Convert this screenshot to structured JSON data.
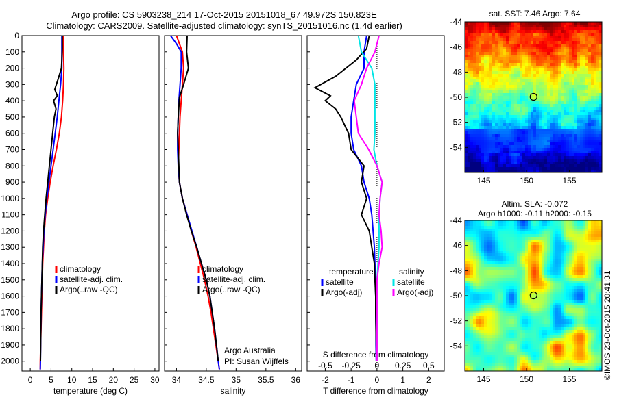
{
  "title": {
    "line1": "Argo profile: CS 5903238_214 17-Oct-2015 20151018_67 49.972S 150.823E",
    "line2": "Climatology: CARS2009. Satellite-adjusted climatology: synTS_20151016.nc (1.4d earlier)"
  },
  "sst_title": "sat. SST: 7.46 Argo: 7.64",
  "sla_title": {
    "line1": "Altim. SLA: -0.072",
    "line2": "Argo h1000: -0.11 h2000: -0.15"
  },
  "credit": "Argo Australia",
  "pi": "PI: Susan Wijffels",
  "stamp": "©IMOS 23-Oct-2015 20:41:31",
  "colors": {
    "climatology": "#ff0000",
    "satellite": "#0000ff",
    "argo": "#000000",
    "sat_salinity": "#00e5e5",
    "argo_salinity": "#ff00ff"
  },
  "chart_data": [
    {
      "type": "line",
      "id": "temperature",
      "xlabel": "temperature (deg C)",
      "ylabel": "",
      "xlim": [
        -2,
        31
      ],
      "ylim": [
        2060,
        0
      ],
      "xticks": [
        "0",
        "5",
        "10",
        "15",
        "20",
        "25",
        "30"
      ],
      "yticks": [
        "0",
        "100",
        "200",
        "300",
        "400",
        "500",
        "600",
        "700",
        "800",
        "900",
        "1000",
        "1100",
        "1200",
        "1300",
        "1400",
        "1500",
        "1600",
        "1700",
        "1800",
        "1900",
        "2000"
      ],
      "legend": [
        "climatology",
        "satellite-adj. clim.",
        "Argo(..raw -QC)"
      ],
      "series": [
        {
          "name": "climatology",
          "color": "#ff0000",
          "points": [
            [
              8.0,
              0
            ],
            [
              8.0,
              100
            ],
            [
              8.1,
              200
            ],
            [
              8.0,
              300
            ],
            [
              7.8,
              400
            ],
            [
              7.5,
              500
            ],
            [
              7.0,
              600
            ],
            [
              6.3,
              700
            ],
            [
              5.5,
              800
            ],
            [
              4.8,
              900
            ],
            [
              4.2,
              1000
            ],
            [
              3.7,
              1100
            ],
            [
              3.4,
              1200
            ],
            [
              3.2,
              1300
            ],
            [
              3.0,
              1400
            ],
            [
              2.9,
              1500
            ],
            [
              2.8,
              1600
            ],
            [
              2.7,
              1700
            ],
            [
              2.6,
              1800
            ],
            [
              2.5,
              1900
            ],
            [
              2.4,
              2000
            ],
            [
              2.4,
              2050
            ]
          ]
        },
        {
          "name": "satellite-adj. clim.",
          "color": "#0000ff",
          "points": [
            [
              7.6,
              0
            ],
            [
              7.6,
              100
            ],
            [
              7.6,
              200
            ],
            [
              7.3,
              300
            ],
            [
              6.9,
              400
            ],
            [
              6.5,
              500
            ],
            [
              6.0,
              600
            ],
            [
              5.5,
              700
            ],
            [
              5.0,
              800
            ],
            [
              4.5,
              900
            ],
            [
              4.0,
              1000
            ],
            [
              3.6,
              1100
            ],
            [
              3.3,
              1200
            ],
            [
              3.1,
              1300
            ],
            [
              2.9,
              1400
            ],
            [
              2.8,
              1500
            ],
            [
              2.7,
              1600
            ],
            [
              2.6,
              1700
            ],
            [
              2.55,
              1800
            ],
            [
              2.5,
              1900
            ],
            [
              2.45,
              2000
            ],
            [
              2.4,
              2050
            ]
          ]
        },
        {
          "name": "Argo(..raw -QC)",
          "color": "#000000",
          "points": [
            [
              7.7,
              0
            ],
            [
              7.7,
              80
            ],
            [
              7.6,
              150
            ],
            [
              7.5,
              200
            ],
            [
              6.8,
              260
            ],
            [
              5.9,
              330
            ],
            [
              6.5,
              370
            ],
            [
              5.6,
              400
            ],
            [
              6.2,
              450
            ],
            [
              5.8,
              500
            ],
            [
              5.4,
              600
            ],
            [
              5.0,
              700
            ],
            [
              4.6,
              800
            ],
            [
              4.2,
              900
            ],
            [
              3.8,
              1000
            ],
            [
              3.5,
              1100
            ],
            [
              3.2,
              1200
            ],
            [
              3.0,
              1300
            ],
            [
              2.9,
              1400
            ],
            [
              2.8,
              1500
            ],
            [
              2.7,
              1600
            ],
            [
              2.6,
              1700
            ],
            [
              2.55,
              1800
            ],
            [
              2.5,
              1900
            ],
            [
              2.45,
              2000
            ]
          ]
        }
      ]
    },
    {
      "type": "line",
      "id": "salinity",
      "xlabel": "salinity",
      "xlim": [
        33.8,
        36.1
      ],
      "ylim": [
        2060,
        0
      ],
      "xticks": [
        "34",
        "34.5",
        "35",
        "35.5",
        "36"
      ],
      "legend": [
        "climatology",
        "satellite-adj. clim.",
        "Argo(..raw -QC)"
      ],
      "series": [
        {
          "name": "climatology",
          "color": "#ff0000",
          "points": [
            [
              34.0,
              0
            ],
            [
              34.05,
              50
            ],
            [
              34.1,
              100
            ],
            [
              34.12,
              200
            ],
            [
              34.1,
              300
            ],
            [
              34.08,
              400
            ],
            [
              34.06,
              500
            ],
            [
              34.05,
              600
            ],
            [
              34.04,
              700
            ],
            [
              34.03,
              800
            ],
            [
              34.05,
              900
            ],
            [
              34.1,
              1000
            ],
            [
              34.18,
              1100
            ],
            [
              34.25,
              1200
            ],
            [
              34.33,
              1300
            ],
            [
              34.4,
              1400
            ],
            [
              34.47,
              1500
            ],
            [
              34.53,
              1600
            ],
            [
              34.58,
              1700
            ],
            [
              34.62,
              1800
            ],
            [
              34.66,
              1900
            ],
            [
              34.7,
              2000
            ],
            [
              34.72,
              2050
            ]
          ]
        },
        {
          "name": "satellite-adj. clim.",
          "color": "#0000ff",
          "points": [
            [
              33.9,
              0
            ],
            [
              34.0,
              50
            ],
            [
              34.08,
              100
            ],
            [
              34.08,
              200
            ],
            [
              34.06,
              300
            ],
            [
              34.04,
              400
            ],
            [
              34.03,
              500
            ],
            [
              34.02,
              600
            ],
            [
              34.02,
              700
            ],
            [
              34.03,
              800
            ],
            [
              34.05,
              900
            ],
            [
              34.1,
              1000
            ],
            [
              34.18,
              1100
            ],
            [
              34.26,
              1200
            ],
            [
              34.34,
              1300
            ],
            [
              34.42,
              1400
            ],
            [
              34.5,
              1500
            ],
            [
              34.56,
              1600
            ],
            [
              34.6,
              1700
            ],
            [
              34.64,
              1800
            ],
            [
              34.67,
              1900
            ],
            [
              34.7,
              2000
            ],
            [
              34.72,
              2050
            ]
          ]
        },
        {
          "name": "Argo(..raw -QC)",
          "color": "#000000",
          "points": [
            [
              34.18,
              0
            ],
            [
              34.17,
              100
            ],
            [
              34.2,
              200
            ],
            [
              34.12,
              300
            ],
            [
              34.05,
              380
            ],
            [
              34.03,
              500
            ],
            [
              34.02,
              600
            ],
            [
              34.03,
              700
            ],
            [
              34.04,
              800
            ],
            [
              34.05,
              900
            ],
            [
              34.1,
              1000
            ],
            [
              34.17,
              1100
            ],
            [
              34.25,
              1200
            ],
            [
              34.34,
              1300
            ],
            [
              34.42,
              1400
            ],
            [
              34.5,
              1500
            ],
            [
              34.56,
              1600
            ],
            [
              34.6,
              1700
            ],
            [
              34.64,
              1800
            ],
            [
              34.67,
              1900
            ],
            [
              34.7,
              2000
            ]
          ]
        }
      ]
    },
    {
      "type": "line",
      "id": "difference",
      "xlabel": "T difference from climatology",
      "xlabel_top": "S difference from climatology",
      "xlim": [
        -2.7,
        2.6
      ],
      "ylim": [
        2060,
        0
      ],
      "xticks": [
        "-2",
        "-1",
        "0",
        "1",
        "2"
      ],
      "xticks_s": [
        "-0.5",
        "-0.25",
        "0",
        "0.25",
        "0.5"
      ],
      "legend": {
        "temperature_head": "temperature",
        "salinity_head": "salinity",
        "satellite": "satellite",
        "argo": "Argo(-adj)"
      },
      "series": [
        {
          "name": "satellite",
          "quantity": "temperature",
          "color": "#0000ff",
          "points": [
            [
              -0.4,
              0
            ],
            [
              -0.5,
              100
            ],
            [
              -0.5,
              200
            ],
            [
              -0.8,
              300
            ],
            [
              -0.9,
              400
            ],
            [
              -1.0,
              500
            ],
            [
              -1.0,
              600
            ],
            [
              -0.9,
              700
            ],
            [
              -0.6,
              800
            ],
            [
              -0.5,
              900
            ],
            [
              -0.3,
              1000
            ],
            [
              -0.2,
              1100
            ],
            [
              -0.15,
              1200
            ],
            [
              -0.1,
              1300
            ],
            [
              -0.08,
              1400
            ],
            [
              -0.06,
              1500
            ],
            [
              -0.05,
              1600
            ],
            [
              -0.05,
              1700
            ],
            [
              -0.04,
              1800
            ],
            [
              -0.04,
              1900
            ],
            [
              -0.03,
              2000
            ]
          ]
        },
        {
          "name": "Argo(-adj)",
          "quantity": "temperature",
          "color": "#000000",
          "points": [
            [
              -0.3,
              0
            ],
            [
              -0.4,
              80
            ],
            [
              -0.8,
              150
            ],
            [
              -1.6,
              250
            ],
            [
              -2.4,
              320
            ],
            [
              -1.8,
              370
            ],
            [
              -2.0,
              400
            ],
            [
              -1.6,
              450
            ],
            [
              -1.4,
              500
            ],
            [
              -1.1,
              600
            ],
            [
              -1.0,
              700
            ],
            [
              -0.5,
              800
            ],
            [
              -0.6,
              900
            ],
            [
              -0.4,
              1000
            ],
            [
              -0.6,
              1100
            ],
            [
              -0.3,
              1200
            ],
            [
              -0.2,
              1300
            ],
            [
              -0.1,
              1400
            ],
            [
              -0.08,
              1500
            ],
            [
              -0.05,
              1600
            ],
            [
              -0.05,
              1700
            ],
            [
              -0.04,
              1800
            ],
            [
              -0.03,
              1900
            ],
            [
              -0.02,
              2000
            ]
          ]
        },
        {
          "name": "satellite",
          "quantity": "salinity",
          "color": "#00e5e5",
          "points": [
            [
              -0.18,
              0
            ],
            [
              -0.15,
              100
            ],
            [
              -0.05,
              200
            ],
            [
              -0.02,
              300
            ],
            [
              -0.02,
              400
            ],
            [
              -0.02,
              500
            ],
            [
              -0.02,
              600
            ],
            [
              -0.03,
              700
            ],
            [
              0.0,
              800
            ],
            [
              0.05,
              900
            ],
            [
              0.03,
              1000
            ],
            [
              0.02,
              1100
            ],
            [
              0.02,
              1200
            ],
            [
              0.02,
              1300
            ],
            [
              0.01,
              1400
            ],
            [
              0.0,
              1500
            ],
            [
              0.0,
              1600
            ],
            [
              0.0,
              1700
            ],
            [
              0.0,
              1800
            ],
            [
              0.0,
              1900
            ],
            [
              0.0,
              2000
            ]
          ]
        },
        {
          "name": "Argo(-adj)",
          "quantity": "salinity",
          "color": "#ff00ff",
          "points": [
            [
              0.02,
              0
            ],
            [
              -0.02,
              100
            ],
            [
              -0.1,
              200
            ],
            [
              -0.15,
              300
            ],
            [
              -0.22,
              400
            ],
            [
              -0.2,
              500
            ],
            [
              -0.18,
              600
            ],
            [
              -0.08,
              700
            ],
            [
              0.0,
              800
            ],
            [
              0.05,
              900
            ],
            [
              0.03,
              1000
            ],
            [
              0.02,
              1100
            ],
            [
              0.04,
              1200
            ],
            [
              0.05,
              1300
            ],
            [
              0.02,
              1400
            ],
            [
              0.0,
              1500
            ],
            [
              0.0,
              1600
            ],
            [
              0.0,
              1700
            ],
            [
              0.0,
              1800
            ],
            [
              0.0,
              1900
            ],
            [
              0.0,
              2000
            ]
          ]
        }
      ]
    },
    {
      "type": "heatmap",
      "id": "sst_map",
      "xticks": [
        "145",
        "150",
        "155"
      ],
      "yticks": [
        "-44",
        "-46",
        "-48",
        "-50",
        "-52",
        "-54"
      ],
      "xlim": [
        142.8,
        158.8
      ],
      "ylim": [
        -56,
        -44
      ],
      "marker": {
        "lon": 150.823,
        "lat": -49.972
      }
    },
    {
      "type": "heatmap",
      "id": "sla_map",
      "xticks": [
        "145",
        "150",
        "155"
      ],
      "yticks": [
        "-44",
        "-46",
        "-48",
        "-50",
        "-52",
        "-54"
      ],
      "xlim": [
        142.8,
        158.8
      ],
      "ylim": [
        -56,
        -44
      ],
      "marker": {
        "lon": 150.823,
        "lat": -49.972
      }
    }
  ]
}
